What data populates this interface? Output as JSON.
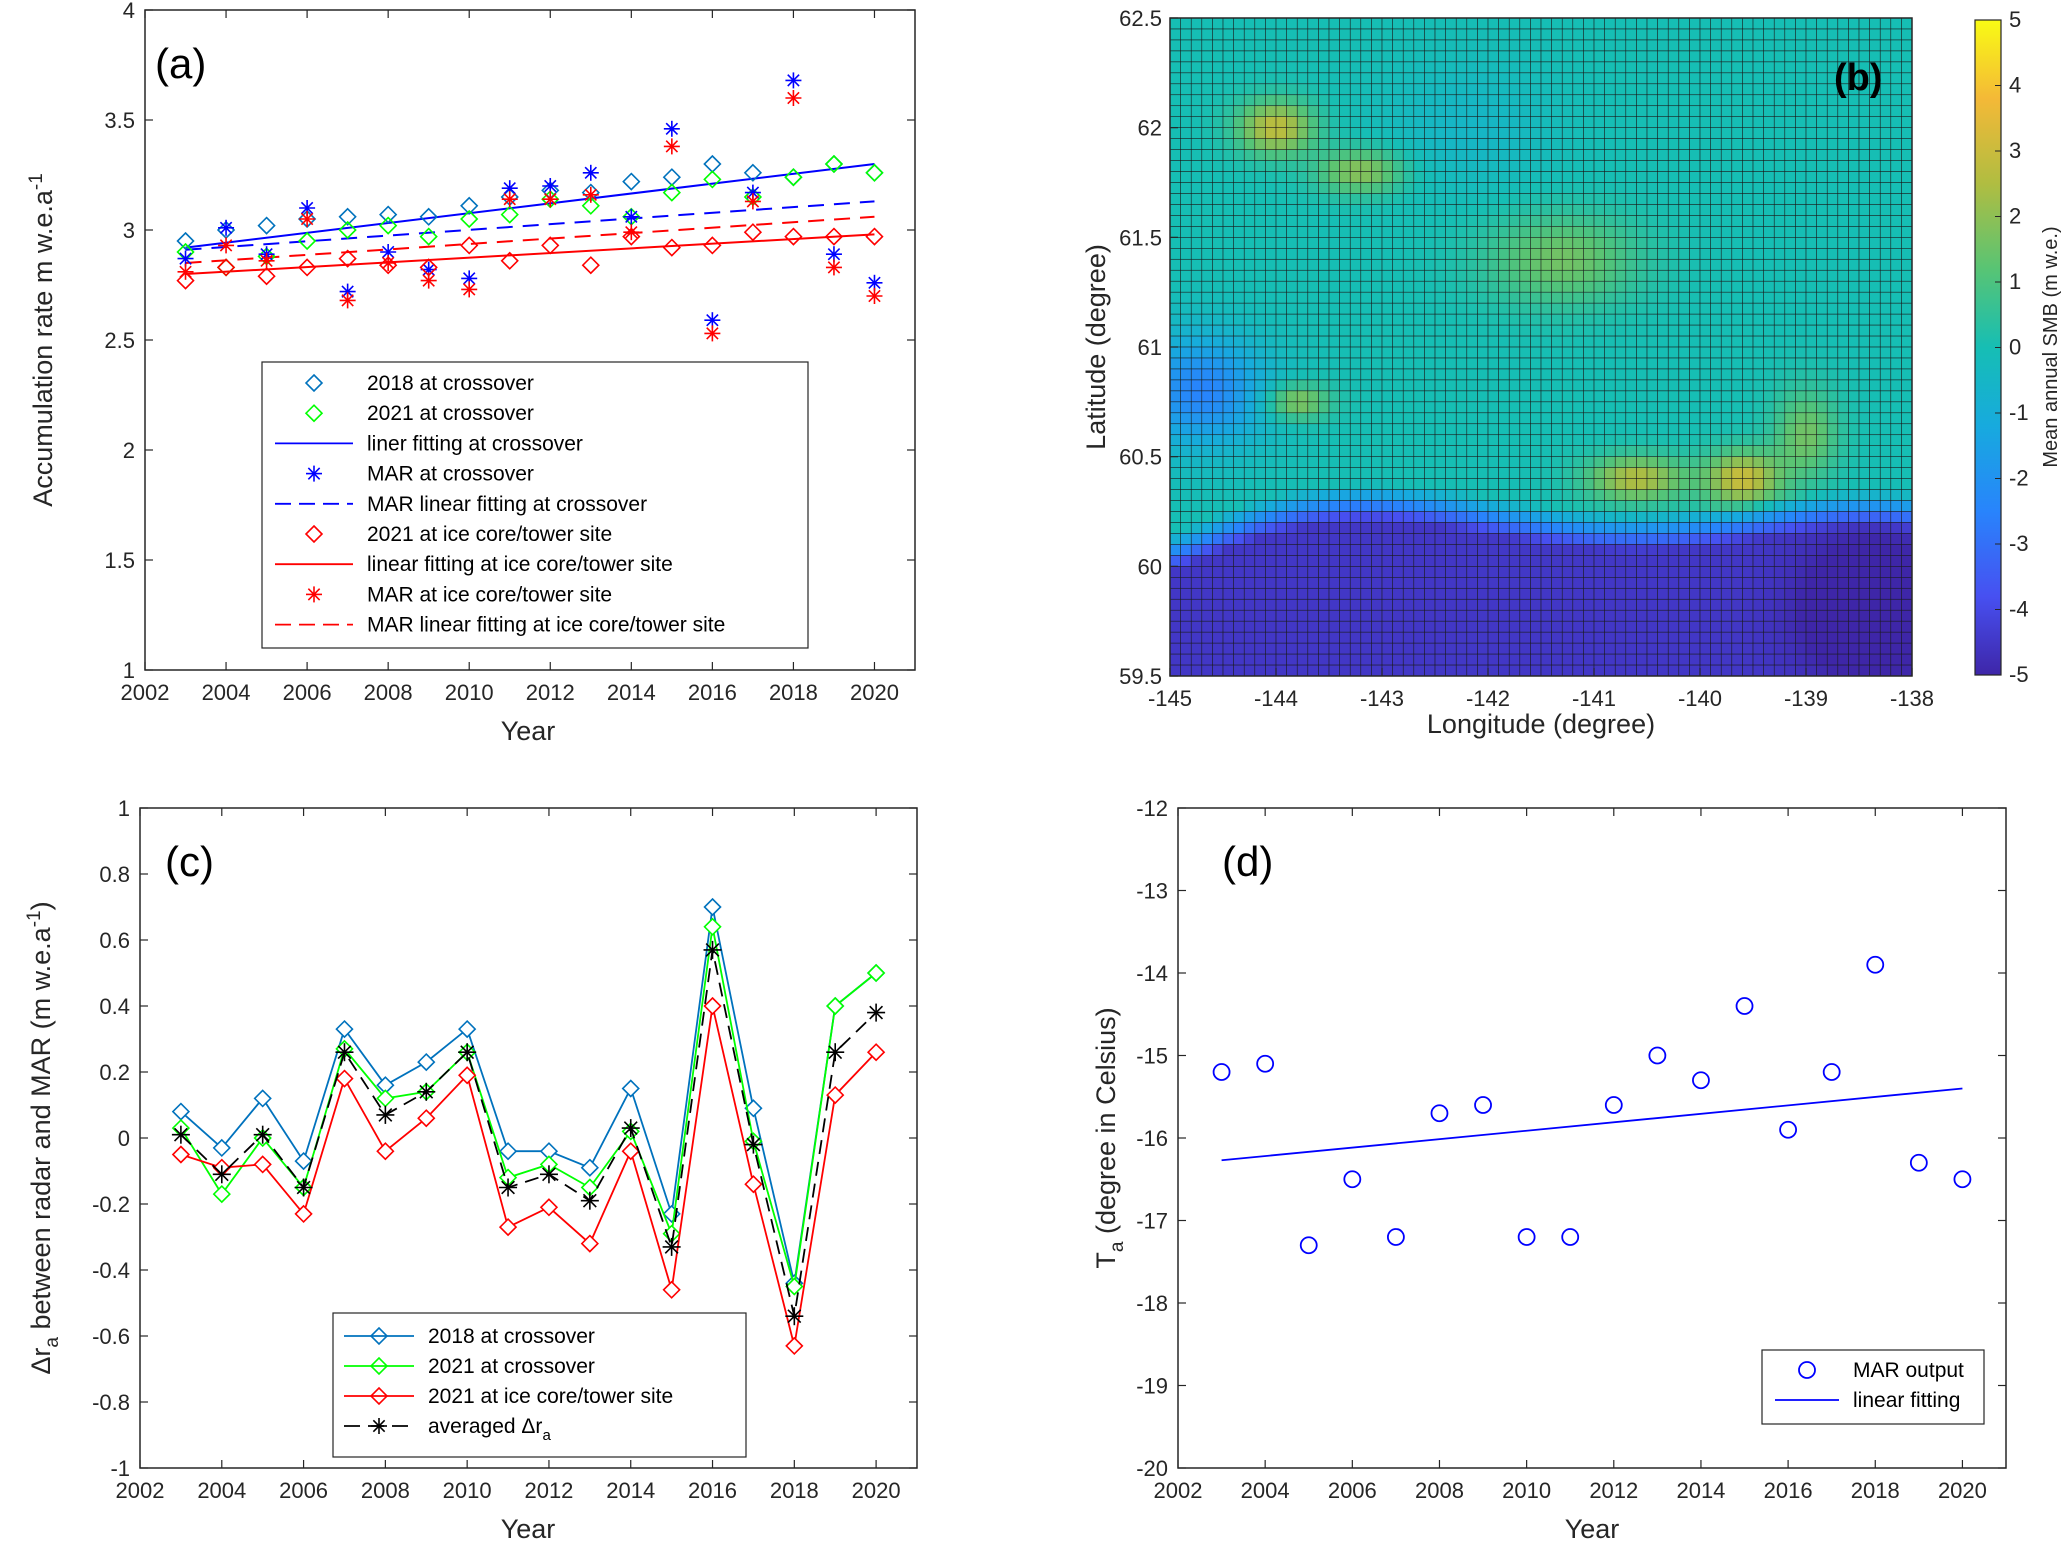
{
  "chart_data": [
    {
      "panel": "(a)",
      "type": "scatter",
      "xlabel": "Year",
      "ylabel": "Accumulation rate m w.e.a",
      "ylabel_sup": "-1",
      "xlim": [
        2002,
        2021
      ],
      "ylim": [
        1,
        4
      ],
      "xticks": [
        2002,
        2004,
        2006,
        2008,
        2010,
        2012,
        2014,
        2016,
        2018,
        2020
      ],
      "yticks": [
        1,
        1.5,
        2,
        2.5,
        3,
        3.5,
        4
      ],
      "series": [
        {
          "name": "2018 at crossover",
          "marker": "diamond",
          "color": "#0072bd",
          "x": [
            2003,
            2004,
            2005,
            2006,
            2007,
            2008,
            2009,
            2010,
            2011,
            2012,
            2013,
            2014,
            2015,
            2016,
            2017,
            2018,
            2019,
            2020
          ],
          "y": [
            2.95,
            3.0,
            3.02,
            3.05,
            3.06,
            3.07,
            3.06,
            3.11,
            3.15,
            3.18,
            3.17,
            3.22,
            3.24,
            3.3,
            3.26,
            3.24,
            3.3,
            3.26
          ]
        },
        {
          "name": "2021 at crossover",
          "marker": "diamond",
          "color": "#00ff00",
          "x": [
            2003,
            2004,
            2005,
            2006,
            2007,
            2008,
            2009,
            2010,
            2011,
            2012,
            2013,
            2014,
            2015,
            2016,
            2017,
            2018,
            2019,
            2020
          ],
          "y": [
            2.9,
            2.83,
            2.88,
            2.95,
            3.0,
            3.02,
            2.97,
            3.05,
            3.07,
            3.14,
            3.11,
            3.06,
            3.17,
            3.23,
            3.15,
            3.24,
            3.3,
            3.26
          ]
        },
        {
          "name": "liner fitting at crossover",
          "line": "solid",
          "color": "#0000ff",
          "x": [
            2003,
            2020
          ],
          "y": [
            2.92,
            3.3
          ]
        },
        {
          "name": "MAR at crossover",
          "marker": "asterisk",
          "color": "#0000ff",
          "x": [
            2003,
            2004,
            2005,
            2006,
            2007,
            2008,
            2009,
            2010,
            2011,
            2012,
            2013,
            2014,
            2015,
            2016,
            2017,
            2018,
            2019,
            2020
          ],
          "y": [
            2.87,
            3.01,
            2.89,
            3.1,
            2.72,
            2.9,
            2.82,
            2.78,
            3.19,
            3.2,
            3.26,
            3.06,
            3.46,
            2.59,
            3.17,
            3.68,
            2.89,
            2.76
          ]
        },
        {
          "name": "MAR linear fitting at crossover",
          "line": "dashed",
          "color": "#0000ff",
          "x": [
            2003,
            2020
          ],
          "y": [
            2.91,
            3.13
          ]
        },
        {
          "name": "2021 at ice core/tower site",
          "marker": "diamond",
          "color": "#ff0000",
          "x": [
            2003,
            2004,
            2005,
            2006,
            2007,
            2008,
            2009,
            2010,
            2011,
            2012,
            2013,
            2014,
            2015,
            2016,
            2017,
            2018,
            2019,
            2020
          ],
          "y": [
            2.77,
            2.83,
            2.79,
            2.83,
            2.87,
            2.84,
            2.83,
            2.93,
            2.86,
            2.93,
            2.84,
            2.97,
            2.92,
            2.93,
            2.99,
            2.97,
            2.97,
            2.97
          ]
        },
        {
          "name": "linear fitting at ice core/tower site",
          "line": "solid",
          "color": "#ff0000",
          "x": [
            2003,
            2020
          ],
          "y": [
            2.8,
            2.98
          ]
        },
        {
          "name": "MAR at ice core/tower site",
          "marker": "asterisk",
          "color": "#ff0000",
          "x": [
            2003,
            2004,
            2005,
            2006,
            2007,
            2008,
            2009,
            2010,
            2011,
            2012,
            2013,
            2014,
            2015,
            2016,
            2017,
            2018,
            2019,
            2020
          ],
          "y": [
            2.81,
            2.93,
            2.86,
            3.05,
            2.68,
            2.85,
            2.77,
            2.73,
            3.14,
            3.14,
            3.16,
            2.99,
            3.38,
            2.53,
            3.13,
            3.6,
            2.83,
            2.7
          ]
        },
        {
          "name": "MAR linear fitting at ice core/tower site",
          "line": "dashed",
          "color": "#ff0000",
          "x": [
            2003,
            2020
          ],
          "y": [
            2.85,
            3.06
          ]
        }
      ]
    },
    {
      "panel": "(b)",
      "type": "heatmap",
      "xlabel": "Longitude (degree)",
      "ylabel": "Latitude (degree)",
      "xlim": [
        -145,
        -138
      ],
      "ylim": [
        59.5,
        62.5
      ],
      "xticks": [
        -145,
        -144,
        -143,
        -142,
        -141,
        -140,
        -139,
        -138
      ],
      "yticks": [
        59.5,
        60,
        60.5,
        61,
        61.5,
        62,
        62.5
      ],
      "colorbar_label": "Mean annual SMB (m w.e.)",
      "colorbar_ticks": [
        -5,
        -4,
        -3,
        -2,
        -1,
        0,
        1,
        2,
        3,
        4,
        5
      ],
      "crange": [
        -5,
        5
      ],
      "colormap": "parula",
      "grid_cols": 70,
      "grid_rows": 60
    },
    {
      "panel": "(c)",
      "type": "line",
      "xlabel": "Year",
      "ylabel": "Δr",
      "ylabel_sub": "a",
      "ylabel_rest": " between radar and MAR (m w.e.a",
      "ylabel_sup": "-1",
      "ylabel_close": ")",
      "xlim": [
        2002,
        2021
      ],
      "ylim": [
        -1,
        1
      ],
      "xticks": [
        2002,
        2004,
        2006,
        2008,
        2010,
        2012,
        2014,
        2016,
        2018,
        2020
      ],
      "yticks": [
        -1,
        -0.8,
        -0.6,
        -0.4,
        -0.2,
        0,
        0.2,
        0.4,
        0.6,
        0.8,
        1
      ],
      "series": [
        {
          "name": "2018 at crossover",
          "marker": "diamond",
          "line": "solid",
          "color": "#0072bd",
          "x": [
            2003,
            2004,
            2005,
            2006,
            2007,
            2008,
            2009,
            2010,
            2011,
            2012,
            2013,
            2014,
            2015,
            2016,
            2017,
            2018,
            2019,
            2020
          ],
          "y": [
            0.08,
            -0.03,
            0.12,
            -0.07,
            0.33,
            0.16,
            0.23,
            0.33,
            -0.04,
            -0.04,
            -0.09,
            0.15,
            -0.23,
            0.7,
            0.09,
            -0.44,
            0.4,
            0.5
          ]
        },
        {
          "name": "2021 at crossover",
          "marker": "diamond",
          "line": "solid",
          "color": "#00ff00",
          "x": [
            2003,
            2004,
            2005,
            2006,
            2007,
            2008,
            2009,
            2010,
            2011,
            2012,
            2013,
            2014,
            2015,
            2016,
            2017,
            2018,
            2019,
            2020
          ],
          "y": [
            0.03,
            -0.17,
            0.0,
            -0.15,
            0.27,
            0.12,
            0.14,
            0.26,
            -0.12,
            -0.08,
            -0.15,
            0.02,
            -0.29,
            0.64,
            -0.01,
            -0.45,
            0.4,
            0.5
          ]
        },
        {
          "name": "2021 at ice core/tower site",
          "marker": "diamond",
          "line": "solid",
          "color": "#ff0000",
          "x": [
            2003,
            2004,
            2005,
            2006,
            2007,
            2008,
            2009,
            2010,
            2011,
            2012,
            2013,
            2014,
            2015,
            2016,
            2017,
            2018,
            2019,
            2020
          ],
          "y": [
            -0.05,
            -0.09,
            -0.08,
            -0.23,
            0.18,
            -0.04,
            0.06,
            0.19,
            -0.27,
            -0.21,
            -0.32,
            -0.04,
            -0.46,
            0.4,
            -0.14,
            -0.63,
            0.13,
            0.26
          ]
        },
        {
          "name": "averaged Δr",
          "name_sub": "a",
          "marker": "asterisk",
          "line": "dashed",
          "color": "#000000",
          "x": [
            2003,
            2004,
            2005,
            2006,
            2007,
            2008,
            2009,
            2010,
            2011,
            2012,
            2013,
            2014,
            2015,
            2016,
            2017,
            2018,
            2019,
            2020
          ],
          "y": [
            0.01,
            -0.11,
            0.01,
            -0.15,
            0.26,
            0.07,
            0.14,
            0.26,
            -0.15,
            -0.11,
            -0.19,
            0.03,
            -0.33,
            0.57,
            -0.02,
            -0.54,
            0.26,
            0.38
          ]
        }
      ]
    },
    {
      "panel": "(d)",
      "type": "scatter",
      "xlabel": "Year",
      "ylabel": "T",
      "ylabel_sub": "a",
      "ylabel_rest": " (degree in Celsius)",
      "xlim": [
        2002,
        2021
      ],
      "ylim": [
        -20,
        -12
      ],
      "xticks": [
        2002,
        2004,
        2006,
        2008,
        2010,
        2012,
        2014,
        2016,
        2018,
        2020
      ],
      "yticks": [
        -20,
        -19,
        -18,
        -17,
        -16,
        -15,
        -14,
        -13,
        -12
      ],
      "series": [
        {
          "name": "MAR output",
          "marker": "circle",
          "color": "#0000ff",
          "x": [
            2003,
            2004,
            2005,
            2006,
            2007,
            2008,
            2009,
            2010,
            2011,
            2012,
            2013,
            2014,
            2015,
            2016,
            2017,
            2018,
            2019,
            2020
          ],
          "y": [
            -15.2,
            -15.1,
            -17.3,
            -16.5,
            -17.2,
            -15.7,
            -15.6,
            -17.2,
            -17.2,
            -15.6,
            -15.0,
            -15.3,
            -14.4,
            -15.9,
            -15.2,
            -13.9,
            -16.3,
            -16.5
          ]
        },
        {
          "name": "linear fitting",
          "line": "solid",
          "color": "#0000ff",
          "x": [
            2003,
            2020
          ],
          "y": [
            -16.27,
            -15.4
          ]
        }
      ]
    }
  ]
}
